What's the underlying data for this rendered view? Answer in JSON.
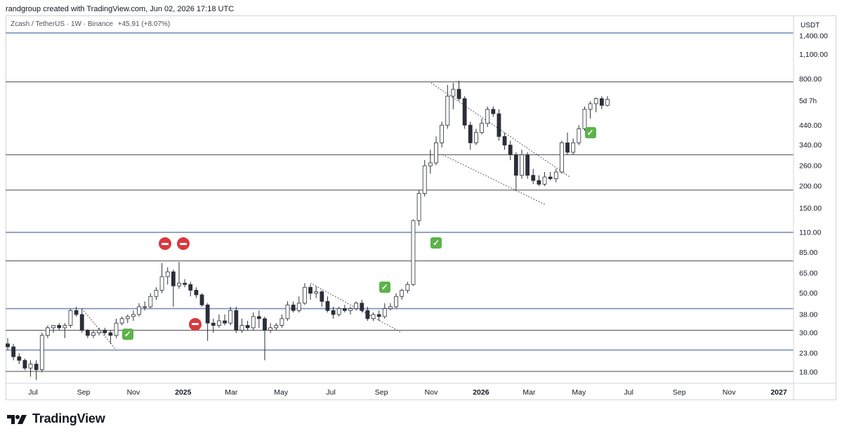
{
  "header": {
    "credit": "randgroup created with TradingView.com, Jun 02, 2026 17:18 UTC"
  },
  "legend": {
    "symbol": "Zcash / TetherUS · 1W · Binance",
    "change": "+45.91 (+8.07%)"
  },
  "price_axis": {
    "unit": "USDT",
    "countdown": "5d 7h"
  },
  "branding": {
    "logo_text": "TradingView"
  },
  "colors": {
    "up_candle": "#ffffff",
    "down_candle": "#2a2e39",
    "outline": "#2a2e39",
    "blue_level": "#7a8fb8",
    "grey_level": "#4a4a4a",
    "check": "#5bb34a",
    "no_entry": "#d9383f"
  },
  "chart_data": {
    "type": "candlestick",
    "title": "Zcash / TetherUS · 1W · Binance",
    "scale": "log",
    "ylabel": "USDT",
    "ylim": [
      14.5,
      1550
    ],
    "y_ticks": [
      1400,
      1100,
      800,
      440,
      340,
      260,
      200,
      150,
      110,
      85,
      65,
      50,
      38,
      30,
      23,
      18
    ],
    "x_ticks": [
      "Jul",
      "Sep",
      "Nov",
      "2025",
      "Mar",
      "May",
      "Jul",
      "Sep",
      "Nov",
      "2026",
      "Mar",
      "May",
      "Jul",
      "Sep",
      "Nov",
      "2027"
    ],
    "x_tick_bold": [
      "2025",
      "2026",
      "2027"
    ],
    "horizontal_levels": [
      {
        "value": 1450,
        "style": "blue"
      },
      {
        "value": 770,
        "style": "grey"
      },
      {
        "value": 300,
        "style": "grey"
      },
      {
        "value": 190,
        "style": "grey"
      },
      {
        "value": 110,
        "style": "blue"
      },
      {
        "value": 76,
        "style": "grey"
      },
      {
        "value": 41,
        "style": "blue"
      },
      {
        "value": 31,
        "style": "grey"
      },
      {
        "value": 24,
        "style": "blue"
      },
      {
        "value": 18.2,
        "style": "grey"
      }
    ],
    "trendlines": [
      {
        "from": [
          "2024-08-30",
          41
        ],
        "to": [
          "2024-10-11",
          24
        ]
      },
      {
        "from": [
          "2025-06-06",
          57
        ],
        "to": [
          "2025-09-26",
          30
        ]
      },
      {
        "from": [
          "2025-11-01",
          760
        ],
        "to": [
          "2026-04-20",
          225
        ]
      },
      {
        "from": [
          "2025-11-15",
          300
        ],
        "to": [
          "2026-03-20",
          158
        ]
      }
    ],
    "candles": [
      {
        "d": "2024-05-31",
        "o": 26,
        "h": 28,
        "l": 24,
        "c": 25
      },
      {
        "d": "2024-06-07",
        "o": 25,
        "h": 26,
        "l": 21,
        "c": 22
      },
      {
        "d": "2024-06-14",
        "o": 22,
        "h": 23,
        "l": 20,
        "c": 21
      },
      {
        "d": "2024-06-21",
        "o": 21,
        "h": 21.5,
        "l": 18.5,
        "c": 19
      },
      {
        "d": "2024-06-28",
        "o": 19,
        "h": 21,
        "l": 17,
        "c": 20
      },
      {
        "d": "2024-07-05",
        "o": 20,
        "h": 21,
        "l": 16.3,
        "c": 18.6
      },
      {
        "d": "2024-07-12",
        "o": 18.6,
        "h": 30,
        "l": 18,
        "c": 29
      },
      {
        "d": "2024-07-19",
        "o": 29,
        "h": 33,
        "l": 28,
        "c": 32
      },
      {
        "d": "2024-07-26",
        "o": 32,
        "h": 33,
        "l": 30,
        "c": 33
      },
      {
        "d": "2024-08-02",
        "o": 33,
        "h": 34,
        "l": 31,
        "c": 32
      },
      {
        "d": "2024-08-09",
        "o": 32,
        "h": 34,
        "l": 28,
        "c": 33
      },
      {
        "d": "2024-08-16",
        "o": 33,
        "h": 41,
        "l": 32,
        "c": 40
      },
      {
        "d": "2024-08-23",
        "o": 40,
        "h": 42,
        "l": 37,
        "c": 38
      },
      {
        "d": "2024-08-30",
        "o": 38,
        "h": 41,
        "l": 30,
        "c": 31
      },
      {
        "d": "2024-09-06",
        "o": 31,
        "h": 31.5,
        "l": 28,
        "c": 29
      },
      {
        "d": "2024-09-13",
        "o": 29,
        "h": 31,
        "l": 28,
        "c": 30
      },
      {
        "d": "2024-09-20",
        "o": 30,
        "h": 32,
        "l": 29,
        "c": 31
      },
      {
        "d": "2024-09-27",
        "o": 31,
        "h": 32,
        "l": 29,
        "c": 30
      },
      {
        "d": "2024-10-04",
        "o": 30,
        "h": 31,
        "l": 26,
        "c": 29
      },
      {
        "d": "2024-10-11",
        "o": 29,
        "h": 36,
        "l": 28,
        "c": 34
      },
      {
        "d": "2024-10-18",
        "o": 34,
        "h": 37,
        "l": 33,
        "c": 36
      },
      {
        "d": "2024-10-25",
        "o": 36,
        "h": 38,
        "l": 34,
        "c": 37
      },
      {
        "d": "2024-11-01",
        "o": 37,
        "h": 40,
        "l": 35,
        "c": 38
      },
      {
        "d": "2024-11-08",
        "o": 38,
        "h": 44,
        "l": 37,
        "c": 42
      },
      {
        "d": "2024-11-15",
        "o": 42,
        "h": 45,
        "l": 40,
        "c": 42
      },
      {
        "d": "2024-11-22",
        "o": 42,
        "h": 50,
        "l": 41,
        "c": 48
      },
      {
        "d": "2024-11-29",
        "o": 48,
        "h": 54,
        "l": 46,
        "c": 52
      },
      {
        "d": "2024-12-06",
        "o": 52,
        "h": 74,
        "l": 50,
        "c": 62
      },
      {
        "d": "2024-12-13",
        "o": 62,
        "h": 70,
        "l": 56,
        "c": 66
      },
      {
        "d": "2024-12-20",
        "o": 66,
        "h": 68,
        "l": 42,
        "c": 55
      },
      {
        "d": "2024-12-27",
        "o": 55,
        "h": 75,
        "l": 53,
        "c": 57
      },
      {
        "d": "2025-01-03",
        "o": 57,
        "h": 60,
        "l": 54,
        "c": 56
      },
      {
        "d": "2025-01-10",
        "o": 56,
        "h": 58,
        "l": 48,
        "c": 52
      },
      {
        "d": "2025-01-17",
        "o": 52,
        "h": 54,
        "l": 47,
        "c": 49
      },
      {
        "d": "2025-01-24",
        "o": 49,
        "h": 50,
        "l": 42,
        "c": 43
      },
      {
        "d": "2025-01-31",
        "o": 43,
        "h": 44,
        "l": 27,
        "c": 34
      },
      {
        "d": "2025-02-07",
        "o": 34,
        "h": 36,
        "l": 30,
        "c": 33
      },
      {
        "d": "2025-02-14",
        "o": 33,
        "h": 38,
        "l": 32,
        "c": 35
      },
      {
        "d": "2025-02-21",
        "o": 35,
        "h": 38,
        "l": 33,
        "c": 34
      },
      {
        "d": "2025-02-28",
        "o": 34,
        "h": 42,
        "l": 33,
        "c": 40
      },
      {
        "d": "2025-03-07",
        "o": 40,
        "h": 42,
        "l": 30,
        "c": 31
      },
      {
        "d": "2025-03-14",
        "o": 31,
        "h": 36,
        "l": 30,
        "c": 33
      },
      {
        "d": "2025-03-21",
        "o": 33,
        "h": 35,
        "l": 31,
        "c": 32
      },
      {
        "d": "2025-03-28",
        "o": 32,
        "h": 39,
        "l": 31,
        "c": 37
      },
      {
        "d": "2025-04-04",
        "o": 37,
        "h": 40,
        "l": 32,
        "c": 36
      },
      {
        "d": "2025-04-11",
        "o": 36,
        "h": 37,
        "l": 21,
        "c": 31
      },
      {
        "d": "2025-04-18",
        "o": 31,
        "h": 34,
        "l": 30,
        "c": 32
      },
      {
        "d": "2025-04-25",
        "o": 32,
        "h": 34,
        "l": 31,
        "c": 33
      },
      {
        "d": "2025-05-02",
        "o": 33,
        "h": 38,
        "l": 32,
        "c": 36
      },
      {
        "d": "2025-05-09",
        "o": 36,
        "h": 45,
        "l": 35,
        "c": 43
      },
      {
        "d": "2025-05-16",
        "o": 43,
        "h": 45,
        "l": 39,
        "c": 40
      },
      {
        "d": "2025-05-23",
        "o": 40,
        "h": 48,
        "l": 39,
        "c": 44
      },
      {
        "d": "2025-05-30",
        "o": 44,
        "h": 57,
        "l": 43,
        "c": 54
      },
      {
        "d": "2025-06-06",
        "o": 54,
        "h": 56,
        "l": 46,
        "c": 50
      },
      {
        "d": "2025-06-13",
        "o": 50,
        "h": 55,
        "l": 47,
        "c": 51
      },
      {
        "d": "2025-06-20",
        "o": 51,
        "h": 52,
        "l": 42,
        "c": 45
      },
      {
        "d": "2025-06-27",
        "o": 45,
        "h": 48,
        "l": 39,
        "c": 40
      },
      {
        "d": "2025-07-04",
        "o": 40,
        "h": 42,
        "l": 36,
        "c": 38
      },
      {
        "d": "2025-07-11",
        "o": 38,
        "h": 42,
        "l": 37,
        "c": 41
      },
      {
        "d": "2025-07-18",
        "o": 41,
        "h": 43,
        "l": 39,
        "c": 40
      },
      {
        "d": "2025-07-25",
        "o": 40,
        "h": 42,
        "l": 38,
        "c": 41
      },
      {
        "d": "2025-08-01",
        "o": 41,
        "h": 45,
        "l": 40,
        "c": 44
      },
      {
        "d": "2025-08-08",
        "o": 44,
        "h": 46,
        "l": 39,
        "c": 40
      },
      {
        "d": "2025-08-15",
        "o": 40,
        "h": 42,
        "l": 35,
        "c": 36
      },
      {
        "d": "2025-08-22",
        "o": 36,
        "h": 39,
        "l": 35,
        "c": 38
      },
      {
        "d": "2025-08-29",
        "o": 38,
        "h": 40,
        "l": 35,
        "c": 37
      },
      {
        "d": "2025-09-05",
        "o": 37,
        "h": 44,
        "l": 36,
        "c": 41
      },
      {
        "d": "2025-09-12",
        "o": 41,
        "h": 44,
        "l": 40,
        "c": 42
      },
      {
        "d": "2025-09-19",
        "o": 42,
        "h": 50,
        "l": 41,
        "c": 48
      },
      {
        "d": "2025-09-26",
        "o": 48,
        "h": 53,
        "l": 46,
        "c": 52
      },
      {
        "d": "2025-10-03",
        "o": 52,
        "h": 58,
        "l": 50,
        "c": 56
      },
      {
        "d": "2025-10-10",
        "o": 56,
        "h": 130,
        "l": 55,
        "c": 128
      },
      {
        "d": "2025-10-17",
        "o": 128,
        "h": 190,
        "l": 120,
        "c": 182
      },
      {
        "d": "2025-10-24",
        "o": 182,
        "h": 280,
        "l": 175,
        "c": 260
      },
      {
        "d": "2025-10-31",
        "o": 260,
        "h": 320,
        "l": 235,
        "c": 270
      },
      {
        "d": "2025-11-07",
        "o": 270,
        "h": 380,
        "l": 262,
        "c": 350
      },
      {
        "d": "2025-11-14",
        "o": 350,
        "h": 460,
        "l": 330,
        "c": 440
      },
      {
        "d": "2025-11-21",
        "o": 440,
        "h": 740,
        "l": 420,
        "c": 640
      },
      {
        "d": "2025-11-28",
        "o": 640,
        "h": 760,
        "l": 540,
        "c": 700
      },
      {
        "d": "2025-12-05",
        "o": 700,
        "h": 780,
        "l": 600,
        "c": 620
      },
      {
        "d": "2025-12-12",
        "o": 620,
        "h": 640,
        "l": 420,
        "c": 440
      },
      {
        "d": "2025-12-19",
        "o": 440,
        "h": 460,
        "l": 320,
        "c": 350
      },
      {
        "d": "2025-12-26",
        "o": 350,
        "h": 420,
        "l": 340,
        "c": 400
      },
      {
        "d": "2026-01-02",
        "o": 400,
        "h": 480,
        "l": 390,
        "c": 450
      },
      {
        "d": "2026-01-09",
        "o": 450,
        "h": 560,
        "l": 430,
        "c": 540
      },
      {
        "d": "2026-01-16",
        "o": 540,
        "h": 560,
        "l": 490,
        "c": 510
      },
      {
        "d": "2026-01-23",
        "o": 510,
        "h": 540,
        "l": 360,
        "c": 380
      },
      {
        "d": "2026-01-30",
        "o": 380,
        "h": 400,
        "l": 320,
        "c": 340
      },
      {
        "d": "2026-02-06",
        "o": 340,
        "h": 360,
        "l": 280,
        "c": 300
      },
      {
        "d": "2026-02-13",
        "o": 300,
        "h": 310,
        "l": 190,
        "c": 230
      },
      {
        "d": "2026-02-20",
        "o": 230,
        "h": 320,
        "l": 220,
        "c": 300
      },
      {
        "d": "2026-02-27",
        "o": 300,
        "h": 310,
        "l": 220,
        "c": 230
      },
      {
        "d": "2026-03-06",
        "o": 230,
        "h": 250,
        "l": 205,
        "c": 215
      },
      {
        "d": "2026-03-13",
        "o": 215,
        "h": 230,
        "l": 200,
        "c": 205
      },
      {
        "d": "2026-03-20",
        "o": 205,
        "h": 240,
        "l": 200,
        "c": 225
      },
      {
        "d": "2026-03-27",
        "o": 225,
        "h": 240,
        "l": 215,
        "c": 220
      },
      {
        "d": "2026-04-03",
        "o": 220,
        "h": 250,
        "l": 210,
        "c": 240
      },
      {
        "d": "2026-04-10",
        "o": 240,
        "h": 360,
        "l": 235,
        "c": 350
      },
      {
        "d": "2026-04-17",
        "o": 350,
        "h": 400,
        "l": 300,
        "c": 310
      },
      {
        "d": "2026-04-24",
        "o": 310,
        "h": 370,
        "l": 300,
        "c": 350
      },
      {
        "d": "2026-05-01",
        "o": 350,
        "h": 440,
        "l": 340,
        "c": 420
      },
      {
        "d": "2026-05-08",
        "o": 420,
        "h": 560,
        "l": 410,
        "c": 540
      },
      {
        "d": "2026-05-15",
        "o": 540,
        "h": 600,
        "l": 480,
        "c": 580
      },
      {
        "d": "2026-05-22",
        "o": 580,
        "h": 630,
        "l": 520,
        "c": 620
      },
      {
        "d": "2026-05-29",
        "o": 620,
        "h": 640,
        "l": 540,
        "c": 568
      },
      {
        "d": "2026-06-05",
        "o": 568,
        "h": 640,
        "l": 560,
        "c": 614
      }
    ],
    "markers": [
      {
        "type": "check",
        "d": "2024-10-25",
        "v": 29.5
      },
      {
        "type": "no-entry",
        "d": "2024-12-10",
        "v": 95
      },
      {
        "type": "no-entry",
        "d": "2025-01-01",
        "v": 95
      },
      {
        "type": "no-entry",
        "d": "2025-01-16",
        "v": 33.5
      },
      {
        "type": "check",
        "d": "2025-09-05",
        "v": 54
      },
      {
        "type": "check",
        "d": "2025-11-07",
        "v": 96
      },
      {
        "type": "check",
        "d": "2026-05-15",
        "v": 400
      }
    ]
  }
}
